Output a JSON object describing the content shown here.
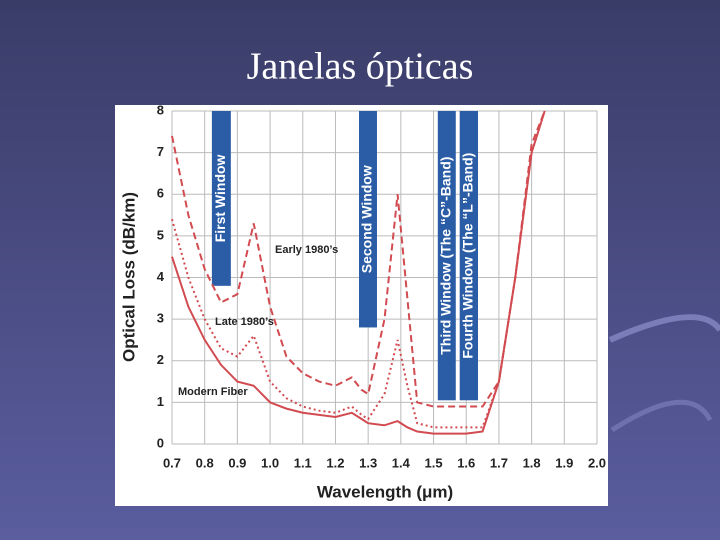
{
  "chart_data": {
    "type": "line",
    "title": "Janelas ópticas",
    "x_label": "Wavelength (μm)",
    "y_label": "Optical Loss (dB/km)",
    "x": [
      0.7,
      0.75,
      0.8,
      0.85,
      0.9,
      0.95,
      1.0,
      1.05,
      1.1,
      1.15,
      1.2,
      1.25,
      1.28,
      1.3,
      1.35,
      1.39,
      1.42,
      1.45,
      1.5,
      1.55,
      1.6,
      1.65,
      1.7,
      1.75,
      1.8,
      1.84
    ],
    "series": [
      {
        "name": "Early 1980’s",
        "color": "#d24b50",
        "dash": "7,4",
        "values": [
          7.4,
          5.5,
          4.2,
          3.4,
          3.6,
          5.3,
          3.3,
          2.1,
          1.7,
          1.5,
          1.4,
          1.6,
          1.3,
          1.2,
          3.0,
          6.0,
          3.5,
          1.0,
          0.9,
          0.9,
          0.9,
          0.9,
          1.5,
          4.0,
          7.2,
          8.0
        ]
      },
      {
        "name": "Late 1980’s",
        "color": "#d24b50",
        "dash": "2,3",
        "values": [
          5.4,
          4.0,
          3.0,
          2.3,
          2.1,
          2.6,
          1.5,
          1.1,
          0.9,
          0.8,
          0.75,
          0.9,
          0.7,
          0.6,
          1.2,
          2.5,
          1.4,
          0.5,
          0.4,
          0.4,
          0.4,
          0.4,
          1.5,
          4.0,
          7.0,
          8.0
        ]
      },
      {
        "name": "Modern Fiber",
        "color": "#d24b50",
        "dash": "none",
        "values": [
          4.5,
          3.3,
          2.5,
          1.9,
          1.5,
          1.4,
          1.0,
          0.85,
          0.75,
          0.7,
          0.65,
          0.75,
          0.6,
          0.5,
          0.45,
          0.55,
          0.4,
          0.3,
          0.25,
          0.25,
          0.25,
          0.3,
          1.5,
          4.0,
          7.0,
          8.0
        ]
      }
    ],
    "windows": [
      {
        "label": "First Window",
        "xmin": 0.822,
        "xmax": 0.88,
        "ymin": 3.8
      },
      {
        "label": "Second Window",
        "xmin": 1.272,
        "xmax": 1.327,
        "ymin": 2.8
      },
      {
        "label": "Third Window (The “C”-Band)",
        "xmin": 1.513,
        "xmax": 1.568,
        "ymin": 1.05
      },
      {
        "label": "Fourth Window (The “L”-Band)",
        "xmin": 1.58,
        "xmax": 1.636,
        "ymin": 1.05
      }
    ],
    "xlim": [
      0.7,
      2.0
    ],
    "ylim": [
      0,
      8
    ],
    "xticks": [
      0.7,
      0.8,
      0.9,
      {
        "value": 1,
        "label": "1.0"
      },
      1.1,
      1.2,
      1.3,
      1.4,
      1.5,
      1.6,
      1.7,
      1.8,
      1.9,
      {
        "value": 2,
        "label": "2.0"
      }
    ],
    "yticks": [
      0,
      1,
      2,
      3,
      4,
      5,
      6,
      7,
      8
    ],
    "grid": true
  }
}
